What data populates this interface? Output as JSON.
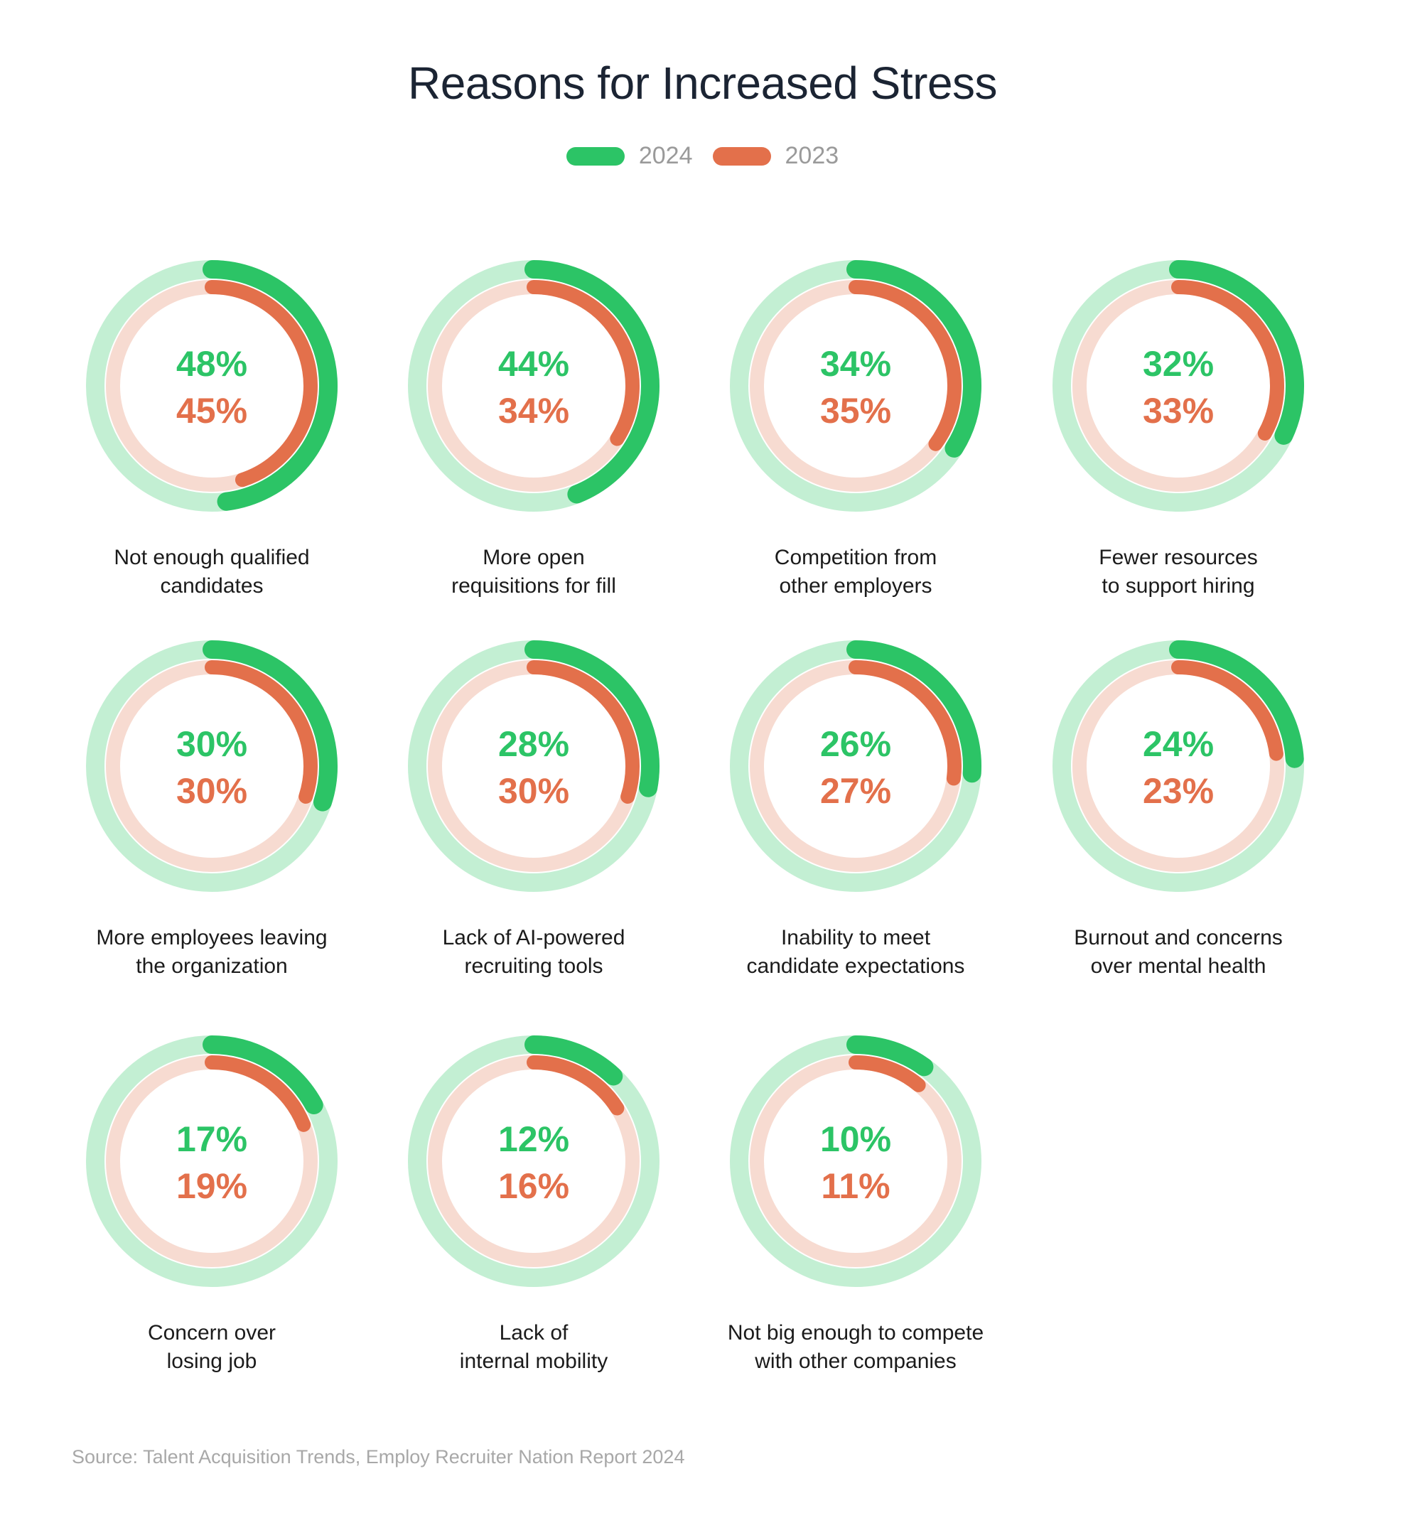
{
  "colors": {
    "c2024": "#2cc466",
    "c2024_track": "#c3efd3",
    "c2023": "#e3704b",
    "c2023_track": "#f7dbd1",
    "title": "#1b2433"
  },
  "title": "Reasons for Increased Stress",
  "legend": [
    {
      "label": "2024",
      "color": "#2cc466"
    },
    {
      "label": "2023",
      "color": "#e3704b"
    }
  ],
  "source": "Source: Talent Acquisition Trends, Employ Recruiter Nation Report 2024",
  "chart_data": {
    "type": "radial-progress",
    "title": "Reasons for Increased Stress",
    "series": [
      {
        "name": "2024"
      },
      {
        "name": "2023"
      }
    ],
    "unit": "%",
    "items": [
      {
        "label_lines": [
          "Not enough qualified",
          "candidates"
        ],
        "v2024": 48,
        "v2023": 45,
        "t2024": "48%",
        "t2023": "45%"
      },
      {
        "label_lines": [
          "More open",
          "requisitions for fill"
        ],
        "v2024": 44,
        "v2023": 34,
        "t2024": "44%",
        "t2023": "34%"
      },
      {
        "label_lines": [
          "Competition from",
          "other employers"
        ],
        "v2024": 34,
        "v2023": 35,
        "t2024": "34%",
        "t2023": "35%"
      },
      {
        "label_lines": [
          "Fewer resources",
          "to support hiring"
        ],
        "v2024": 32,
        "v2023": 33,
        "t2024": "32%",
        "t2023": "33%"
      },
      {
        "label_lines": [
          "More employees leaving",
          "the organization"
        ],
        "v2024": 30,
        "v2023": 30,
        "t2024": "30%",
        "t2023": "30%"
      },
      {
        "label_lines": [
          "Lack of AI-powered",
          "recruiting tools"
        ],
        "v2024": 28,
        "v2023": 30,
        "t2024": "28%",
        "t2023": "30%"
      },
      {
        "label_lines": [
          "Inability to meet",
          "candidate expectations"
        ],
        "v2024": 26,
        "v2023": 27,
        "t2024": "26%",
        "t2023": "27%"
      },
      {
        "label_lines": [
          "Burnout and concerns",
          "over mental health"
        ],
        "v2024": 24,
        "v2023": 23,
        "t2024": "24%",
        "t2023": "23%"
      },
      {
        "label_lines": [
          "Concern over",
          "losing job"
        ],
        "v2024": 17,
        "v2023": 19,
        "t2024": "17%",
        "t2023": "19%"
      },
      {
        "label_lines": [
          "Lack of",
          "internal mobility"
        ],
        "v2024": 12,
        "v2023": 16,
        "t2024": "12%",
        "t2023": "16%"
      },
      {
        "label_lines": [
          "Not big enough to compete",
          "with other companies"
        ],
        "v2024": 10,
        "v2023": 11,
        "t2024": "10%",
        "t2023": "11%"
      }
    ]
  }
}
